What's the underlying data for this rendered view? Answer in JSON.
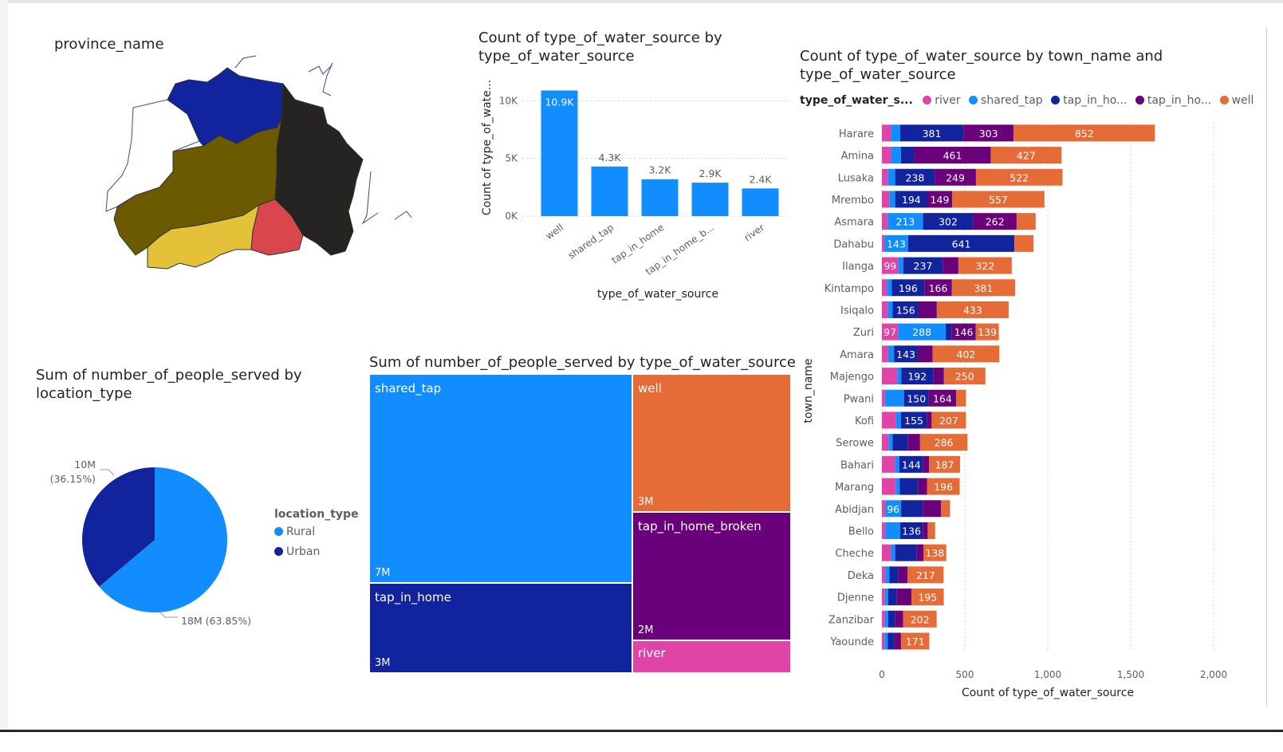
{
  "colors": {
    "river": "#E044A7",
    "shared_tap": "#118DFF",
    "tap_in_home": "#12239E",
    "tap_in_home_broken": "#6B007B",
    "well": "#E66C37",
    "rural": "#118DFF",
    "urban": "#12239E"
  },
  "map": {
    "title": "province_name",
    "region_colors": [
      "#ffffff",
      "#12239E",
      "#252423",
      "#6B5A00",
      "#E3C23A",
      "#D9474C"
    ]
  },
  "chart_data": [
    {
      "id": "source_counts",
      "type": "bar",
      "title": "Count of type_of_water_source by type_of_water_source",
      "title_lines": [
        "Count of type_of_water_source by",
        "type_of_water_source"
      ],
      "xlabel": "type_of_water_source",
      "ylabel": "Count of type_of_wate...",
      "categories": [
        "well",
        "shared_tap",
        "tap_in_home",
        "tap_in_home_b...",
        "river"
      ],
      "values": [
        10900,
        4300,
        3200,
        2900,
        2400
      ],
      "data_labels": [
        "10.9K",
        "4.3K",
        "3.2K",
        "2.9K",
        "2.4K"
      ],
      "ylim": [
        0,
        11000
      ],
      "yticks": [
        0,
        5000,
        10000
      ],
      "ytick_labels": [
        "0K",
        "5K",
        "10K"
      ],
      "grid": true
    },
    {
      "id": "town_counts",
      "type": "bar",
      "orientation": "horizontal",
      "stacked": true,
      "title": "Count of type_of_water_source by town_name and type_of_water_source",
      "title_lines": [
        "Count of type_of_water_source by town_name and",
        "type_of_water_source"
      ],
      "legend_title": "type_of_water_s...",
      "legend_labels": [
        "river",
        "shared_tap",
        "tap_in_ho...",
        "tap_in_ho...",
        "well"
      ],
      "legend_position": "top",
      "xlabel": "Count of type_of_water_source",
      "ylabel": "town_name",
      "xlim": [
        0,
        2000
      ],
      "xticks": [
        0,
        500,
        1000,
        1500,
        2000
      ],
      "xtick_labels": [
        "0",
        "500",
        "1,000",
        "1,500",
        "2,000"
      ],
      "grid": true,
      "categories": [
        "Harare",
        "Amina",
        "Lusaka",
        "Mrembo",
        "Asmara",
        "Dahabu",
        "Ilanga",
        "Kintampo",
        "Isiqalo",
        "Zuri",
        "Amara",
        "Majengo",
        "Pwani",
        "Kofi",
        "Serowe",
        "Bahari",
        "Marang",
        "Abidjan",
        "Bello",
        "Cheche",
        "Deka",
        "Djenne",
        "Zanzibar",
        "Yaounde"
      ],
      "series": [
        {
          "name": "river",
          "values": [
            55,
            55,
            35,
            45,
            35,
            15,
            99,
            30,
            35,
            97,
            38,
            92,
            18,
            85,
            40,
            80,
            83,
            20,
            20,
            55,
            20,
            18,
            18,
            15
          ]
        },
        {
          "name": "shared_tap",
          "values": [
            55,
            60,
            45,
            35,
            213,
            143,
            30,
            30,
            30,
            288,
            35,
            25,
            115,
            30,
            25,
            25,
            25,
            96,
            90,
            25,
            25,
            20,
            20,
            20
          ]
        },
        {
          "name": "tap_in_home",
          "values": [
            381,
            80,
            238,
            194,
            302,
            641,
            237,
            196,
            156,
            35,
            143,
            192,
            150,
            155,
            90,
            144,
            110,
            130,
            136,
            130,
            55,
            50,
            40,
            40
          ]
        },
        {
          "name": "tap_in_home_broken",
          "values": [
            303,
            461,
            249,
            149,
            262,
            0,
            95,
            166,
            110,
            146,
            90,
            65,
            164,
            30,
            75,
            35,
            55,
            110,
            30,
            40,
            55,
            90,
            50,
            40
          ]
        },
        {
          "name": "well",
          "values": [
            852,
            427,
            522,
            557,
            115,
            115,
            322,
            381,
            433,
            139,
            402,
            250,
            60,
            207,
            286,
            187,
            196,
            55,
            45,
            138,
            217,
            195,
            202,
            171
          ]
        }
      ],
      "data_labels": [
        [
          "",
          "",
          "381",
          "303",
          "852"
        ],
        [
          "",
          "",
          "",
          "461",
          "427"
        ],
        [
          "",
          "",
          "238",
          "249",
          "522"
        ],
        [
          "",
          "",
          "194",
          "149",
          "557"
        ],
        [
          "",
          "213",
          "302",
          "262",
          ""
        ],
        [
          "",
          "143",
          "641",
          "",
          ""
        ],
        [
          "99",
          "",
          "237",
          "",
          "322"
        ],
        [
          "",
          "",
          "196",
          "166",
          "381"
        ],
        [
          "",
          "",
          "156",
          "",
          "433"
        ],
        [
          "97",
          "288",
          "",
          "146",
          "139"
        ],
        [
          "",
          "",
          "143",
          "",
          "402"
        ],
        [
          "",
          "",
          "192",
          "",
          "250"
        ],
        [
          "",
          "",
          "150",
          "164",
          ""
        ],
        [
          "",
          "",
          "155",
          "",
          "207"
        ],
        [
          "",
          "",
          "",
          "",
          "286"
        ],
        [
          "",
          "",
          "144",
          "",
          "187"
        ],
        [
          "",
          "",
          "",
          "",
          "196"
        ],
        [
          "",
          "96",
          "",
          "",
          ""
        ],
        [
          "",
          "",
          "136",
          "",
          ""
        ],
        [
          "",
          "",
          "",
          "",
          "138"
        ],
        [
          "",
          "",
          "",
          "",
          "217"
        ],
        [
          "",
          "",
          "",
          "",
          "195"
        ],
        [
          "",
          "",
          "",
          "",
          "202"
        ],
        [
          "",
          "",
          "",
          "",
          "171"
        ]
      ]
    },
    {
      "id": "location_pie",
      "type": "pie",
      "title": "Sum of number_of_people_served by location_type",
      "title_lines": [
        "Sum of number_of_people_served by",
        "location_type"
      ],
      "legend_title": "location_type",
      "legend_position": "right",
      "categories": [
        "Rural",
        "Urban"
      ],
      "values": [
        63.85,
        36.15
      ],
      "data_labels": [
        "18M (63.85%)",
        "10M\n(36.15%)"
      ]
    },
    {
      "id": "people_treemap",
      "type": "treemap",
      "title": "Sum of number_of_people_served by type_of_water_source",
      "categories": [
        "shared_tap",
        "tap_in_home",
        "well",
        "tap_in_home_broken",
        "river"
      ],
      "values": [
        7,
        3,
        3,
        2,
        0.8
      ],
      "data_labels": [
        "7M",
        "3M",
        "3M",
        "2M",
        ""
      ]
    }
  ]
}
